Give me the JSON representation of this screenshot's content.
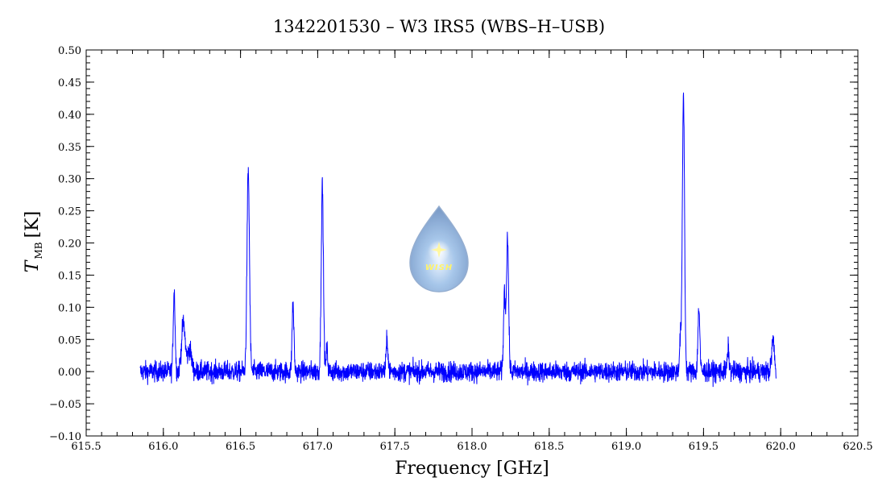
{
  "chart_data": {
    "type": "line",
    "title": "1342201530 – W3 IRS5 (WBS–H–USB)",
    "xlabel": "Frequency [GHz]",
    "ylabel_main": "T",
    "ylabel_sub": "MB",
    "ylabel_unit": "[K]",
    "xlim": [
      615.5,
      620.5
    ],
    "ylim": [
      -0.1,
      0.5
    ],
    "xticks": [
      "615.5",
      "616.0",
      "616.5",
      "617.0",
      "617.5",
      "618.0",
      "618.5",
      "619.0",
      "619.5",
      "620.0",
      "620.5"
    ],
    "yticks": [
      "−0.10",
      "−0.05",
      "0.00",
      "0.05",
      "0.10",
      "0.15",
      "0.20",
      "0.25",
      "0.30",
      "0.35",
      "0.40",
      "0.45",
      "0.50"
    ],
    "grid": false,
    "color": "#0000ff",
    "series": [
      {
        "x_range": [
          615.85,
          619.97
        ],
        "noise_rms": 0.008,
        "lines": [
          {
            "x": 616.07,
            "peak": 0.125,
            "width": 0.006
          },
          {
            "x": 616.13,
            "peak": 0.075,
            "width": 0.012
          },
          {
            "x": 616.17,
            "peak": 0.035,
            "width": 0.012
          },
          {
            "x": 616.55,
            "peak": 0.31,
            "width": 0.008
          },
          {
            "x": 616.84,
            "peak": 0.105,
            "width": 0.006
          },
          {
            "x": 617.03,
            "peak": 0.29,
            "width": 0.007
          },
          {
            "x": 617.06,
            "peak": 0.035,
            "width": 0.005
          },
          {
            "x": 617.45,
            "peak": 0.05,
            "width": 0.006
          },
          {
            "x": 618.21,
            "peak": 0.12,
            "width": 0.006
          },
          {
            "x": 618.23,
            "peak": 0.21,
            "width": 0.007
          },
          {
            "x": 619.35,
            "peak": 0.05,
            "width": 0.006
          },
          {
            "x": 619.37,
            "peak": 0.43,
            "width": 0.007
          },
          {
            "x": 619.47,
            "peak": 0.1,
            "width": 0.006
          },
          {
            "x": 619.66,
            "peak": 0.035,
            "width": 0.006
          },
          {
            "x": 619.95,
            "peak": 0.05,
            "width": 0.008
          }
        ]
      }
    ],
    "watermark": "WISH"
  }
}
